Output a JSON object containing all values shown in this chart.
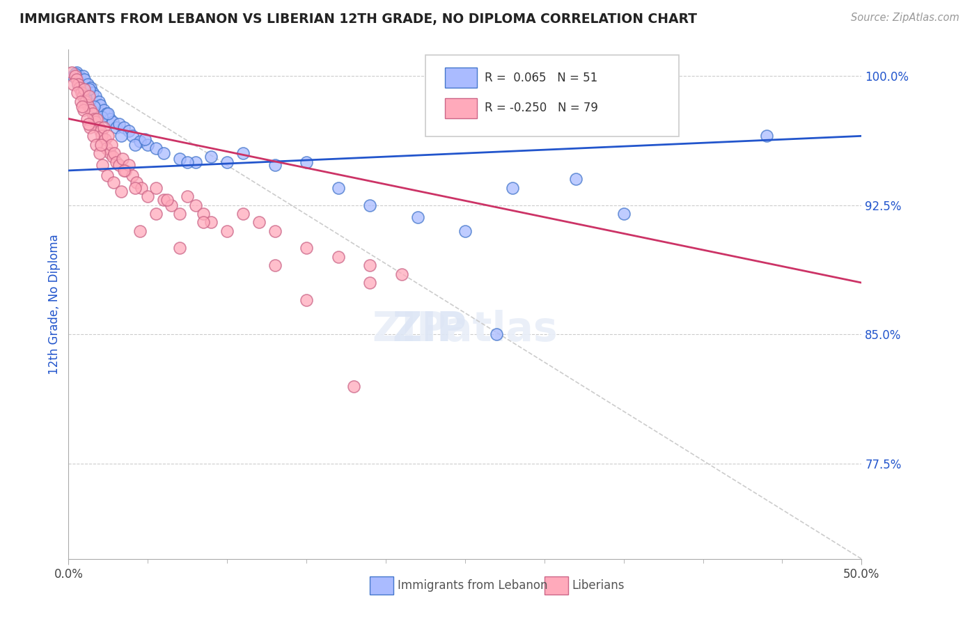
{
  "title": "IMMIGRANTS FROM LEBANON VS LIBERIAN 12TH GRADE, NO DIPLOMA CORRELATION CHART",
  "source": "Source: ZipAtlas.com",
  "ylabel": "12th Grade, No Diploma",
  "yticks": [
    100.0,
    92.5,
    85.0,
    77.5
  ],
  "ytick_labels": [
    "100.0%",
    "92.5%",
    "85.0%",
    "77.5%"
  ],
  "legend1_r": "0.065",
  "legend1_n": "51",
  "legend2_r": "-0.250",
  "legend2_n": "79",
  "blue_fill": "#aabbff",
  "pink_fill": "#ffaabb",
  "blue_edge": "#4477cc",
  "pink_edge": "#cc6688",
  "blue_line_color": "#2255cc",
  "pink_line_color": "#cc3366",
  "text_color_blue": "#2255cc",
  "xmin": 0.0,
  "xmax": 50.0,
  "ymin": 72.0,
  "ymax": 101.5,
  "blue_trend": [
    94.5,
    96.5
  ],
  "pink_trend": [
    97.5,
    88.0
  ],
  "diag_line": [
    [
      0,
      100.5
    ],
    [
      50,
      72.0
    ]
  ],
  "blue_dots_x": [
    0.3,
    0.5,
    0.7,
    0.9,
    1.0,
    1.2,
    1.4,
    1.5,
    1.7,
    1.9,
    2.0,
    2.2,
    2.4,
    2.6,
    2.8,
    3.0,
    3.2,
    3.5,
    3.8,
    4.0,
    4.5,
    5.0,
    5.5,
    6.0,
    7.0,
    8.0,
    9.0,
    10.0,
    11.0,
    13.0,
    15.0,
    17.0,
    19.0,
    22.0,
    25.0,
    28.0,
    32.0,
    0.6,
    1.1,
    1.6,
    2.1,
    3.3,
    4.2,
    0.4,
    1.3,
    2.5,
    4.8,
    7.5,
    27.0,
    35.0,
    44.0
  ],
  "blue_dots_y": [
    100.0,
    100.2,
    100.0,
    100.0,
    99.8,
    99.5,
    99.3,
    99.0,
    98.8,
    98.5,
    98.3,
    98.0,
    97.8,
    97.5,
    97.3,
    97.0,
    97.2,
    97.0,
    96.8,
    96.5,
    96.2,
    96.0,
    95.8,
    95.5,
    95.2,
    95.0,
    95.3,
    95.0,
    95.5,
    94.8,
    95.0,
    93.5,
    92.5,
    91.8,
    91.0,
    93.5,
    94.0,
    99.5,
    98.7,
    98.2,
    97.6,
    96.5,
    96.0,
    100.1,
    99.2,
    97.8,
    96.3,
    95.0,
    85.0,
    92.0,
    96.5
  ],
  "pink_dots_x": [
    0.2,
    0.4,
    0.5,
    0.6,
    0.7,
    0.8,
    0.9,
    1.0,
    1.1,
    1.2,
    1.3,
    1.4,
    1.5,
    1.6,
    1.7,
    1.8,
    1.9,
    2.0,
    2.1,
    2.2,
    2.3,
    2.4,
    2.5,
    2.6,
    2.7,
    2.8,
    2.9,
    3.0,
    3.2,
    3.4,
    3.6,
    3.8,
    4.0,
    4.3,
    4.6,
    5.0,
    5.5,
    6.0,
    6.5,
    7.0,
    7.5,
    8.0,
    8.5,
    9.0,
    10.0,
    11.0,
    12.0,
    13.0,
    15.0,
    17.0,
    19.0,
    21.0,
    0.3,
    0.55,
    0.75,
    0.95,
    1.15,
    1.35,
    1.55,
    1.75,
    1.95,
    2.15,
    2.45,
    2.85,
    3.3,
    4.5,
    7.0,
    13.0,
    19.0,
    0.85,
    1.25,
    2.05,
    3.5,
    5.5,
    8.5,
    4.2,
    6.2,
    15.0,
    18.0
  ],
  "pink_dots_y": [
    100.2,
    100.0,
    99.8,
    99.5,
    99.3,
    99.0,
    98.8,
    99.2,
    98.5,
    98.3,
    98.8,
    98.0,
    97.8,
    97.5,
    97.3,
    97.5,
    97.0,
    96.8,
    96.5,
    97.0,
    96.3,
    95.8,
    96.5,
    95.5,
    96.0,
    95.3,
    95.5,
    95.0,
    94.8,
    95.2,
    94.5,
    94.8,
    94.2,
    93.8,
    93.5,
    93.0,
    93.5,
    92.8,
    92.5,
    92.0,
    93.0,
    92.5,
    92.0,
    91.5,
    91.0,
    92.0,
    91.5,
    91.0,
    90.0,
    89.5,
    89.0,
    88.5,
    99.5,
    99.0,
    98.5,
    98.0,
    97.5,
    97.0,
    96.5,
    96.0,
    95.5,
    94.8,
    94.2,
    93.8,
    93.3,
    91.0,
    90.0,
    89.0,
    88.0,
    98.2,
    97.2,
    96.0,
    94.5,
    92.0,
    91.5,
    93.5,
    92.8,
    87.0,
    82.0
  ]
}
